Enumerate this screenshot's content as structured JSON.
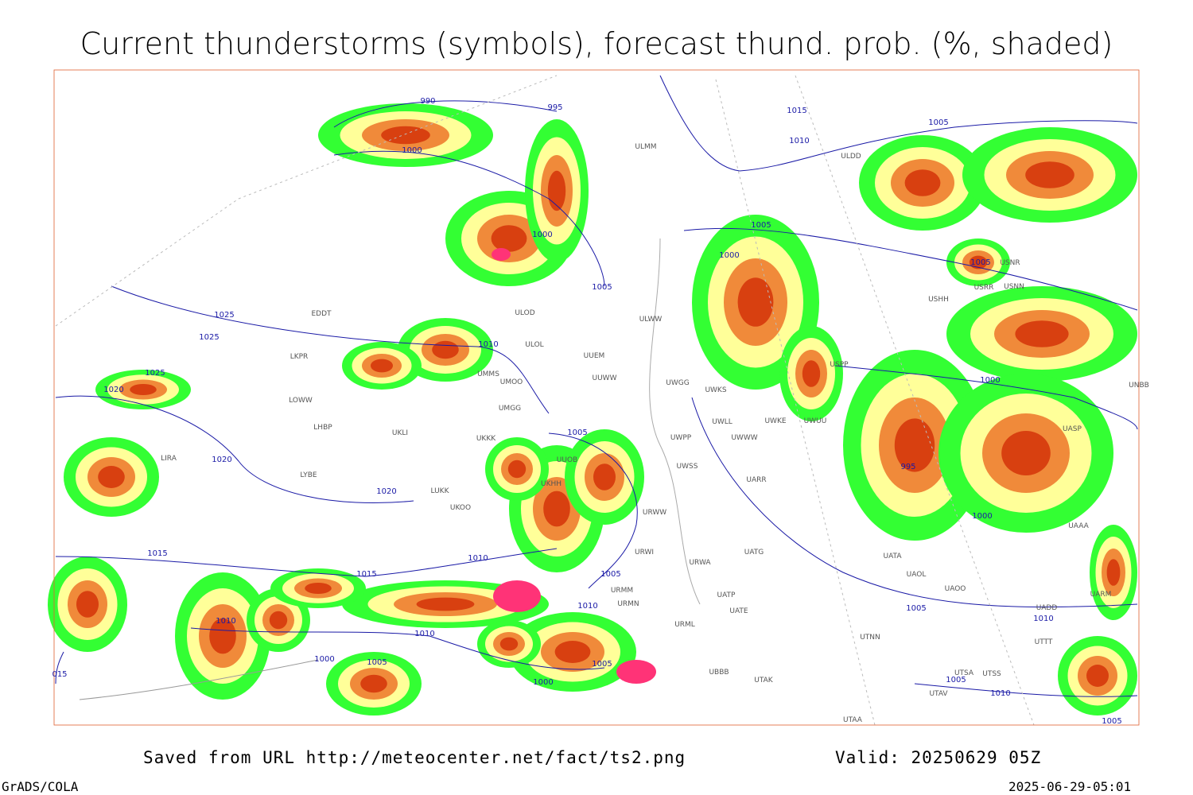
{
  "header": {
    "title": "Current thunderstorms (symbols), forecast thund. prob. (%, shaded)"
  },
  "map": {
    "isobar_labels": [
      "990",
      "995",
      "1000",
      "1015",
      "1010",
      "1005",
      "1000",
      "1005",
      "1005",
      "1000",
      "1005",
      "1025",
      "1025",
      "1025",
      "1020",
      "1010",
      "1020",
      "1020",
      "1005",
      "995",
      "1000",
      "1000",
      "1015",
      "1015",
      "1010",
      "1005",
      "1010",
      "1010",
      "1010",
      "1000",
      "1005",
      "1005",
      "1000",
      "1005",
      "1010",
      "1005",
      "1010",
      "1005",
      "015"
    ],
    "stations": [
      "ULMM",
      "ULDD",
      "EDDT",
      "ULOD",
      "ULOL",
      "UUEM",
      "UUWW",
      "UMMS",
      "UMOO",
      "LKPR",
      "ULWW",
      "UWGG",
      "UWKS",
      "UMGG",
      "UKLI",
      "LHBP",
      "LOWW",
      "UWPP",
      "UWWW",
      "UWLL",
      "UWKE",
      "UWUU",
      "USPP",
      "UKKK",
      "UUOB",
      "UWSS",
      "UARR",
      "LUKK",
      "UKOO",
      "LYBE",
      "LIRA",
      "URWW",
      "UKHH",
      "URWI",
      "UATG",
      "URWA",
      "UATP",
      "UATE",
      "URMM",
      "URMN",
      "URML",
      "UTNN",
      "UAOL",
      "UAOO",
      "UATA",
      "UBBB",
      "UTAK",
      "UTAA",
      "UTSA",
      "UTSS",
      "UTAV",
      "USNR",
      "USRR",
      "USNN",
      "USHH",
      "UNBB",
      "UASP",
      "UAAA",
      "UARM",
      "UADD",
      "UTTT"
    ]
  },
  "footer": {
    "source": "Saved from URL http://meteocenter.net/fact/ts2.png",
    "valid": "Valid: 20250629 05Z",
    "software": "GrADS/COLA",
    "timestamp": "2025-06-29-05:01"
  }
}
